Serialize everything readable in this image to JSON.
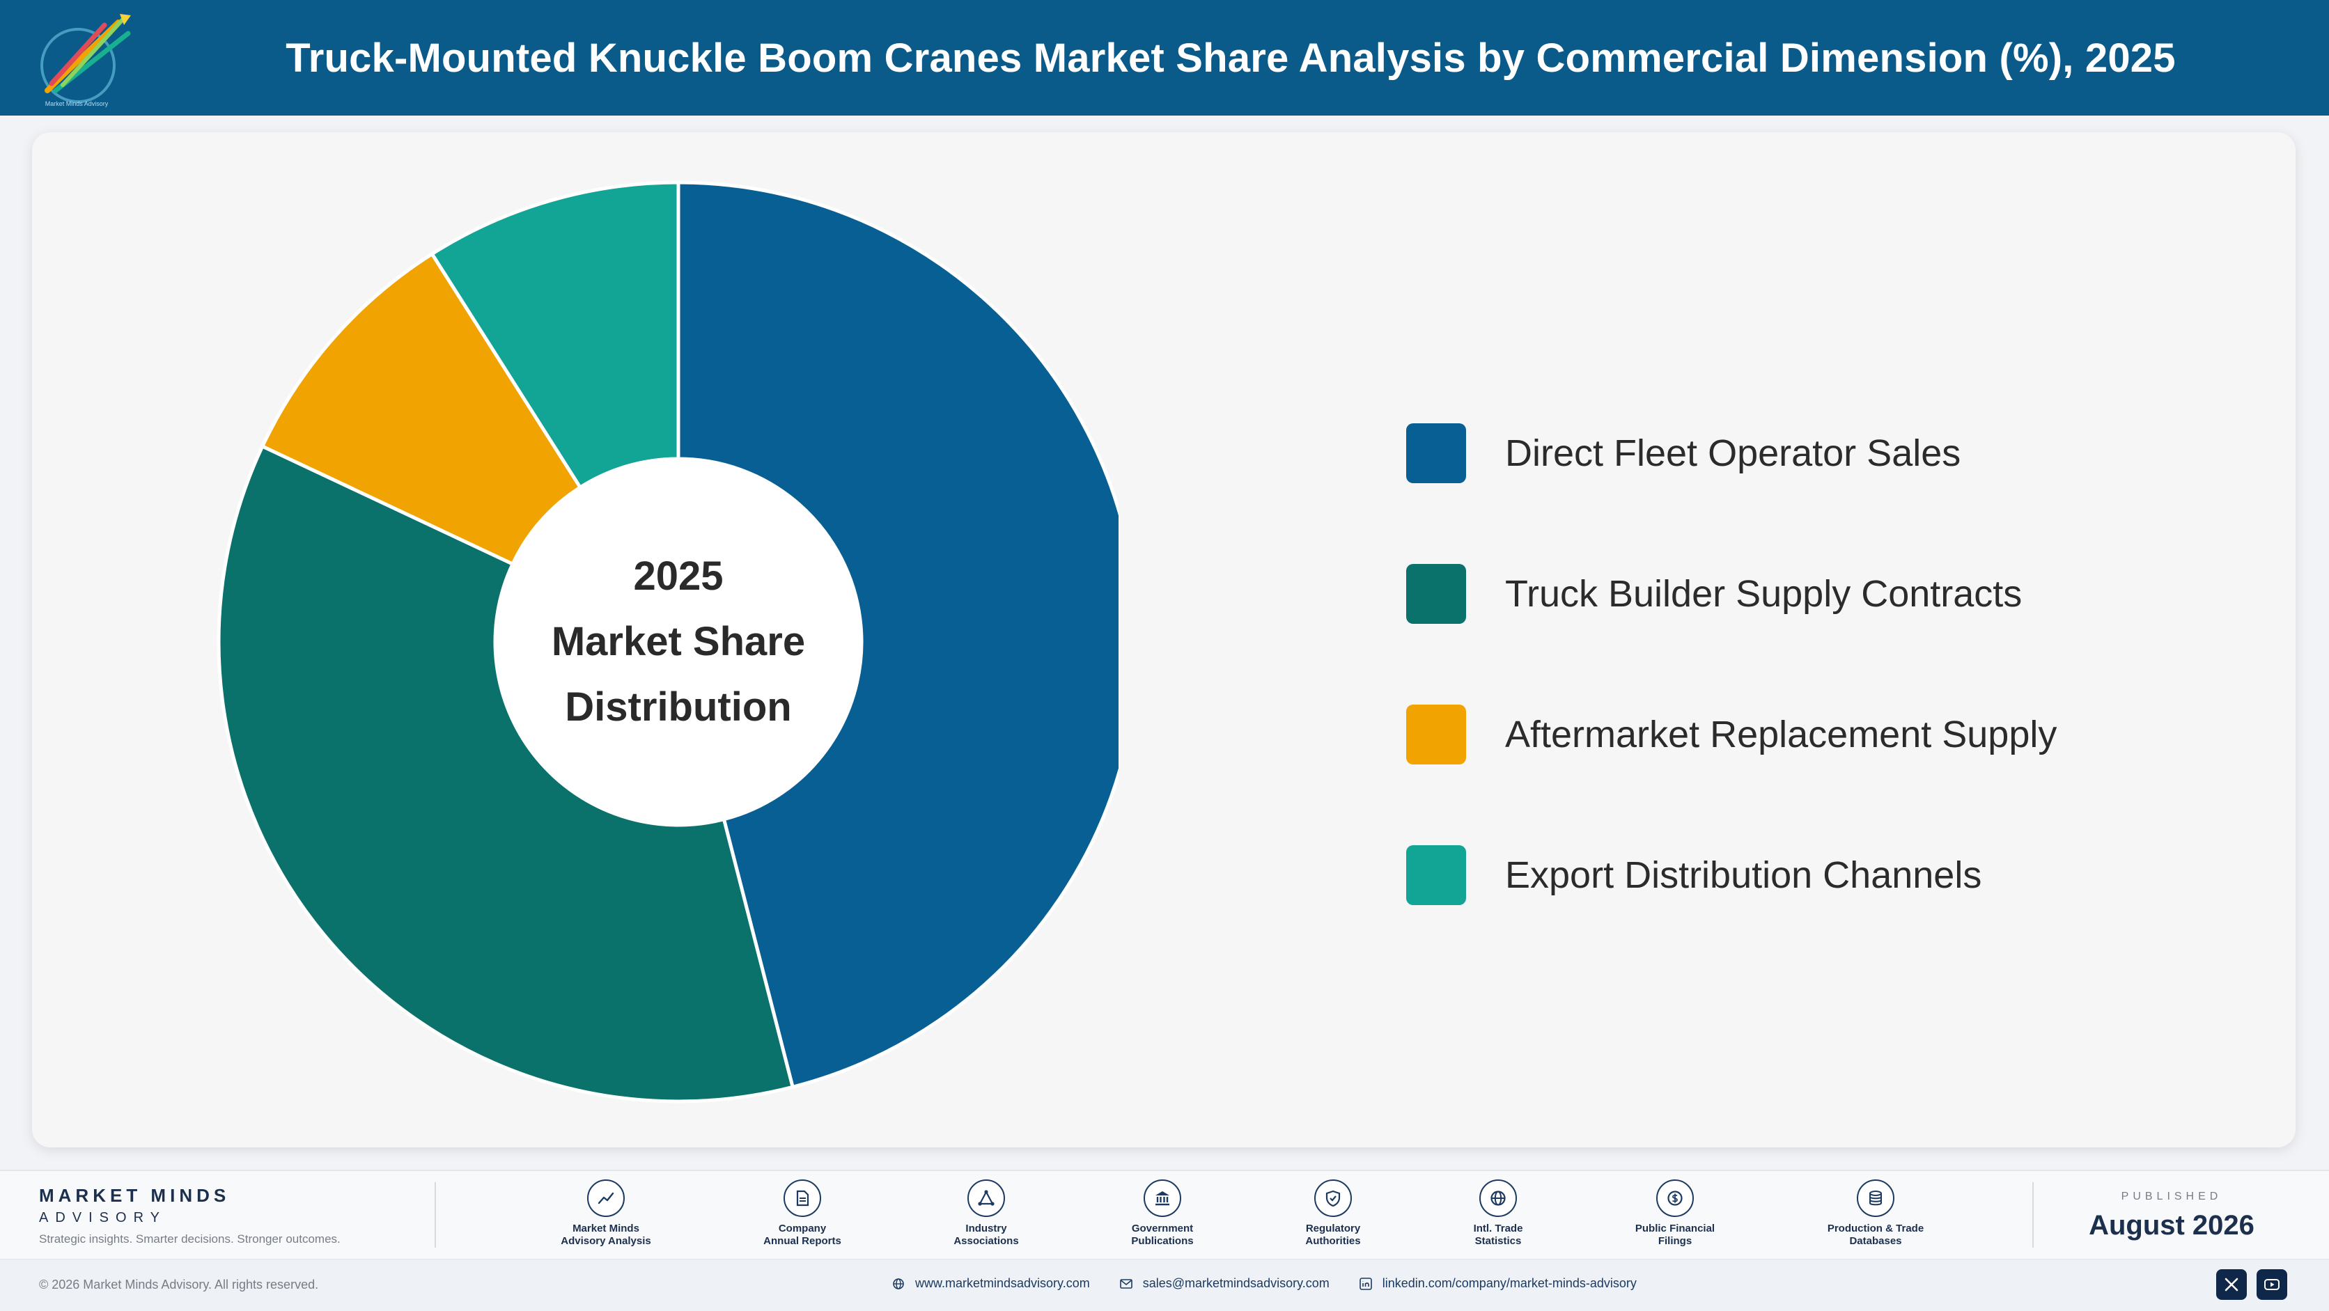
{
  "header": {
    "title": "Truck-Mounted Knuckle Boom Cranes Market Share Analysis by Commercial Dimension (%), 2025",
    "logo_icon": "rocket-logo-icon",
    "logo_caption": "Market Minds Advisory"
  },
  "chart_data": {
    "type": "pie",
    "style": "donut",
    "title": "",
    "center_label": [
      "2025",
      "Market Share",
      "Distribution"
    ],
    "categories": [
      "Direct Fleet Operator Sales",
      "Truck Builder Supply Contracts",
      "Aftermarket Replacement Supply",
      "Export Distribution Channels"
    ],
    "values": [
      46,
      36,
      9,
      9
    ],
    "colors": [
      "#075f93",
      "#0b726b",
      "#f0a301",
      "#12a596"
    ],
    "legend_position": "right",
    "start_angle": "top",
    "direction": "clockwise"
  },
  "footer": {
    "brand_name": "MARKET MINDS",
    "brand_sub": "ADVISORY",
    "tagline": "Strategic insights. Smarter decisions. Stronger outcomes.",
    "sources": [
      {
        "line1": "Market Minds",
        "line2": "Advisory Analysis",
        "icon": "trend-chart-icon"
      },
      {
        "line1": "Company",
        "line2": "Annual Reports",
        "icon": "document-icon"
      },
      {
        "line1": "Industry",
        "line2": "Associations",
        "icon": "network-icon"
      },
      {
        "line1": "Government",
        "line2": "Publications",
        "icon": "government-building-icon"
      },
      {
        "line1": "Regulatory",
        "line2": "Authorities",
        "icon": "shield-check-icon"
      },
      {
        "line1": "Intl. Trade",
        "line2": "Statistics",
        "icon": "globe-icon"
      },
      {
        "line1": "Public Financial",
        "line2": "Filings",
        "icon": "dollar-coin-icon"
      },
      {
        "line1": "Production & Trade",
        "line2": "Databases",
        "icon": "database-icon"
      }
    ],
    "published_label": "PUBLISHED",
    "published_date": "August 2026"
  },
  "bottom_bar": {
    "copyright": "© 2026 Market Minds Advisory. All rights reserved.",
    "website": "www.marketmindsadvisory.com",
    "email": "sales@marketmindsadvisory.com",
    "linkedin": "linkedin.com/company/market-minds-advisory",
    "social_icons": [
      "x-icon",
      "youtube-icon"
    ]
  }
}
